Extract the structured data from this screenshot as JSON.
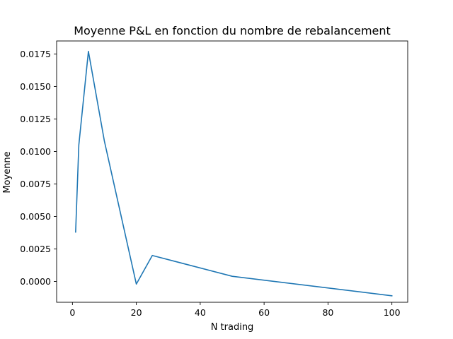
{
  "chart_data": {
    "type": "line",
    "title": "Moyenne P&L en fonction du nombre de rebalancement",
    "xlabel": "N trading",
    "ylabel": "Moyenne",
    "xlim": [
      -4.95,
      104.95
    ],
    "ylim": [
      -0.0016,
      0.0185
    ],
    "x_ticks": [
      0,
      20,
      40,
      60,
      80,
      100
    ],
    "y_ticks": [
      0.0,
      0.0025,
      0.005,
      0.0075,
      0.01,
      0.0125,
      0.015,
      0.0175
    ],
    "x_tick_labels": [
      "0",
      "20",
      "40",
      "60",
      "80",
      "100"
    ],
    "y_tick_labels": [
      "0.0000",
      "0.0025",
      "0.0050",
      "0.0075",
      "0.0100",
      "0.0125",
      "0.0150",
      "0.0175"
    ],
    "grid": false,
    "legend": "none",
    "series": [
      {
        "color": "#1f77b4",
        "x": [
          1,
          2,
          5,
          10,
          20,
          25,
          50,
          100
        ],
        "y": [
          0.0038,
          0.0105,
          0.0177,
          0.0108,
          -0.0002,
          0.002,
          0.0004,
          -0.0011
        ]
      }
    ]
  }
}
